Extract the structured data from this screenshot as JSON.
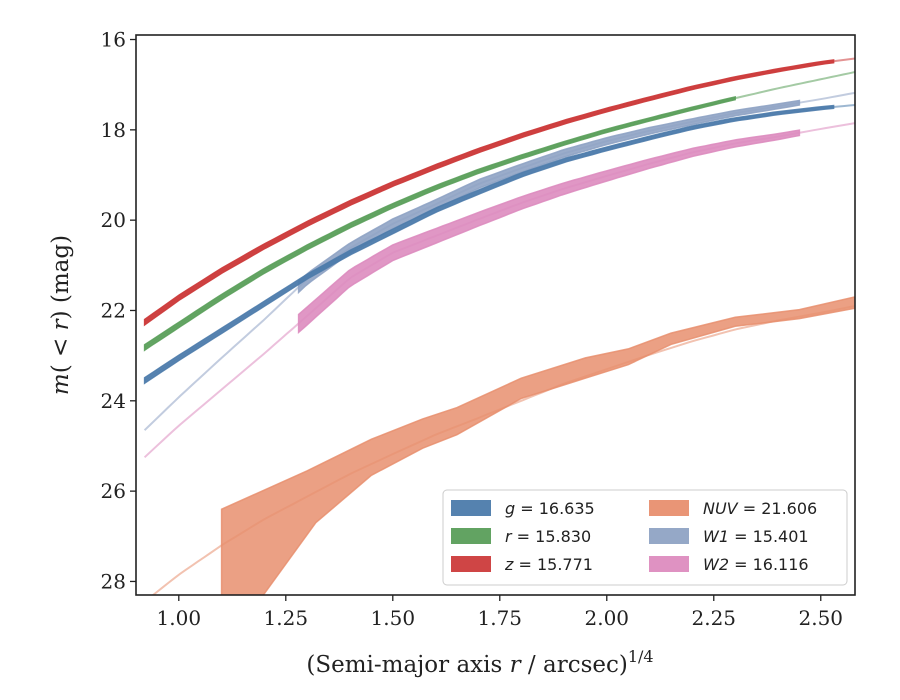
{
  "chart_data": {
    "type": "line",
    "xlabel": "(Semi-major axis r / arcsec)^1/4",
    "ylabel": "m(< r) (mag)",
    "xlim": [
      0.9,
      2.58
    ],
    "ylim": [
      28.3,
      15.9
    ],
    "y_inverted": true,
    "x_ticks": [
      "1.00",
      "1.25",
      "1.50",
      "1.75",
      "2.00",
      "2.25",
      "2.50"
    ],
    "y_ticks": [
      "16",
      "18",
      "20",
      "22",
      "24",
      "26",
      "28"
    ],
    "legend_position": "lower-right",
    "legend_columns": 2,
    "series": [
      {
        "name": "g = 16.635",
        "color": "#4c7bab",
        "band_opacity": 0.9,
        "points": [
          [
            0.92,
            23.55
          ],
          [
            1.0,
            23.05
          ],
          [
            1.1,
            22.45
          ],
          [
            1.2,
            21.85
          ],
          [
            1.3,
            21.25
          ],
          [
            1.4,
            20.72
          ],
          [
            1.5,
            20.25
          ],
          [
            1.6,
            19.78
          ],
          [
            1.7,
            19.38
          ],
          [
            1.8,
            19.0
          ],
          [
            1.9,
            18.68
          ],
          [
            2.0,
            18.42
          ],
          [
            2.1,
            18.18
          ],
          [
            2.2,
            17.95
          ],
          [
            2.3,
            17.77
          ],
          [
            2.4,
            17.63
          ],
          [
            2.5,
            17.52
          ],
          [
            2.58,
            17.45
          ]
        ],
        "solid_range": [
          0.92,
          2.53
        ],
        "band_half": [
          0.06,
          0.03
        ]
      },
      {
        "name": "r = 15.830",
        "color": "#5a9e5a",
        "band_opacity": 0.9,
        "points": [
          [
            0.92,
            22.82
          ],
          [
            1.0,
            22.32
          ],
          [
            1.1,
            21.7
          ],
          [
            1.2,
            21.12
          ],
          [
            1.3,
            20.6
          ],
          [
            1.4,
            20.12
          ],
          [
            1.5,
            19.68
          ],
          [
            1.6,
            19.28
          ],
          [
            1.7,
            18.92
          ],
          [
            1.8,
            18.6
          ],
          [
            1.9,
            18.3
          ],
          [
            2.0,
            18.02
          ],
          [
            2.1,
            17.77
          ],
          [
            2.2,
            17.53
          ],
          [
            2.3,
            17.3
          ],
          [
            2.4,
            17.08
          ],
          [
            2.5,
            16.88
          ],
          [
            2.58,
            16.72
          ]
        ],
        "solid_range": [
          0.92,
          2.3
        ],
        "band_half": [
          0.06,
          0.03
        ]
      },
      {
        "name": "z = 15.771",
        "color": "#cc3b3b",
        "band_opacity": 0.95,
        "points": [
          [
            0.92,
            22.26
          ],
          [
            1.0,
            21.72
          ],
          [
            1.1,
            21.12
          ],
          [
            1.2,
            20.58
          ],
          [
            1.3,
            20.08
          ],
          [
            1.4,
            19.62
          ],
          [
            1.5,
            19.2
          ],
          [
            1.6,
            18.82
          ],
          [
            1.7,
            18.46
          ],
          [
            1.8,
            18.13
          ],
          [
            1.9,
            17.83
          ],
          [
            2.0,
            17.56
          ],
          [
            2.1,
            17.31
          ],
          [
            2.2,
            17.07
          ],
          [
            2.3,
            16.86
          ],
          [
            2.4,
            16.68
          ],
          [
            2.5,
            16.52
          ],
          [
            2.58,
            16.42
          ]
        ],
        "solid_range": [
          0.92,
          2.53
        ],
        "band_half": [
          0.06,
          0.03
        ]
      },
      {
        "name": "NUV = 21.606",
        "color": "#e88f6f",
        "band_opacity": 0.85,
        "points": [
          [
            0.92,
            28.45
          ],
          [
            1.0,
            27.85
          ],
          [
            1.1,
            27.2
          ],
          [
            1.2,
            26.62
          ],
          [
            1.3,
            26.12
          ],
          [
            1.4,
            25.62
          ],
          [
            1.5,
            25.18
          ],
          [
            1.6,
            24.75
          ],
          [
            1.7,
            24.38
          ],
          [
            1.8,
            24.0
          ],
          [
            1.9,
            23.62
          ],
          [
            2.0,
            23.3
          ],
          [
            2.1,
            22.98
          ],
          [
            2.2,
            22.68
          ],
          [
            2.3,
            22.42
          ],
          [
            2.4,
            22.22
          ],
          [
            2.5,
            22.05
          ],
          [
            2.58,
            21.9
          ]
        ],
        "solid_range": [
          1.1,
          2.58
        ],
        "band_upper": [
          [
            1.1,
            26.4
          ],
          [
            1.3,
            25.55
          ],
          [
            1.45,
            24.85
          ],
          [
            1.57,
            24.4
          ],
          [
            1.65,
            24.15
          ],
          [
            1.8,
            23.5
          ],
          [
            1.95,
            23.05
          ],
          [
            2.05,
            22.85
          ],
          [
            2.15,
            22.5
          ],
          [
            2.3,
            22.15
          ],
          [
            2.45,
            21.98
          ],
          [
            2.58,
            21.7
          ]
        ],
        "band_lower": [
          [
            1.1,
            28.5
          ],
          [
            1.19,
            28.4
          ],
          [
            1.32,
            26.7
          ],
          [
            1.45,
            25.65
          ],
          [
            1.57,
            25.05
          ],
          [
            1.65,
            24.75
          ],
          [
            1.8,
            23.95
          ],
          [
            1.95,
            23.5
          ],
          [
            2.05,
            23.2
          ],
          [
            2.15,
            22.75
          ],
          [
            2.3,
            22.35
          ],
          [
            2.45,
            22.18
          ],
          [
            2.58,
            21.95
          ]
        ]
      },
      {
        "name": "W1 = 15.401",
        "color": "#8fa3c4",
        "band_opacity": 0.9,
        "points": [
          [
            0.92,
            24.65
          ],
          [
            1.0,
            23.92
          ],
          [
            1.1,
            23.05
          ],
          [
            1.2,
            22.2
          ],
          [
            1.3,
            21.3
          ],
          [
            1.4,
            20.62
          ],
          [
            1.5,
            20.08
          ],
          [
            1.6,
            19.65
          ],
          [
            1.7,
            19.2
          ],
          [
            1.8,
            18.85
          ],
          [
            1.9,
            18.52
          ],
          [
            2.0,
            18.25
          ],
          [
            2.1,
            18.02
          ],
          [
            2.2,
            17.82
          ],
          [
            2.3,
            17.63
          ],
          [
            2.4,
            17.48
          ],
          [
            2.5,
            17.32
          ],
          [
            2.58,
            17.18
          ]
        ],
        "solid_range": [
          1.28,
          2.45
        ],
        "band_half": [
          0.12,
          0.05
        ]
      },
      {
        "name": "W2 = 16.116",
        "color": "#dd8cbf",
        "band_opacity": 0.9,
        "points": [
          [
            0.92,
            25.25
          ],
          [
            1.0,
            24.55
          ],
          [
            1.1,
            23.75
          ],
          [
            1.2,
            22.95
          ],
          [
            1.3,
            22.12
          ],
          [
            1.4,
            21.28
          ],
          [
            1.5,
            20.72
          ],
          [
            1.6,
            20.35
          ],
          [
            1.7,
            19.98
          ],
          [
            1.8,
            19.62
          ],
          [
            1.9,
            19.3
          ],
          [
            2.0,
            19.02
          ],
          [
            2.1,
            18.75
          ],
          [
            2.2,
            18.5
          ],
          [
            2.3,
            18.3
          ],
          [
            2.4,
            18.15
          ],
          [
            2.5,
            17.98
          ],
          [
            2.58,
            17.85
          ]
        ],
        "solid_range": [
          1.28,
          2.45
        ],
        "band_half": [
          0.2,
          0.06
        ]
      }
    ]
  }
}
